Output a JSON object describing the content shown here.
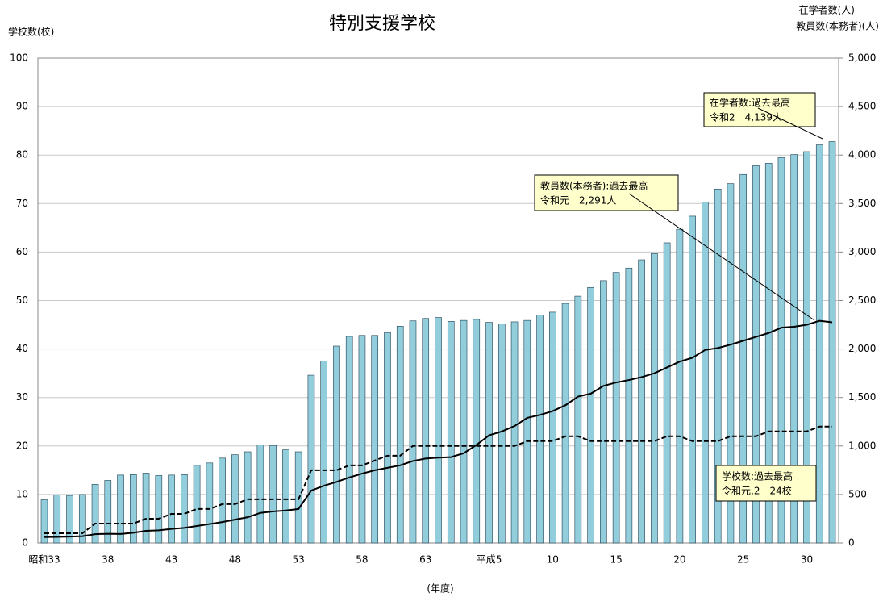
{
  "chart_data": {
    "type": "bar",
    "title": "特別支援学校",
    "y_label": "学校数(校)",
    "y2_label": [
      "在学者数(人)",
      "教員数(本務者)(人)"
    ],
    "x_label": "(年度)",
    "categories": [
      "昭和33",
      null,
      null,
      null,
      null,
      "38",
      null,
      null,
      null,
      null,
      "43",
      null,
      null,
      null,
      null,
      "48",
      null,
      null,
      null,
      null,
      "53",
      null,
      null,
      null,
      null,
      "58",
      null,
      null,
      null,
      null,
      "63",
      null,
      null,
      null,
      null,
      "平成5",
      null,
      null,
      null,
      null,
      "10",
      null,
      null,
      null,
      null,
      "15",
      null,
      null,
      null,
      null,
      "20",
      null,
      null,
      null,
      null,
      "25",
      null,
      null,
      null,
      null,
      "30",
      null,
      null
    ],
    "series": [
      {
        "type": "bar",
        "axis": "y2",
        "color": "#92cddc",
        "values": [
          445,
          495,
          490,
          500,
          605,
          645,
          700,
          705,
          720,
          695,
          700,
          705,
          800,
          825,
          875,
          910,
          940,
          1010,
          1005,
          960,
          940,
          1730,
          1875,
          2030,
          2130,
          2140,
          2140,
          2170,
          2235,
          2290,
          2315,
          2325,
          2285,
          2295,
          2305,
          2275,
          2260,
          2280,
          2295,
          2350,
          2380,
          2470,
          2545,
          2635,
          2705,
          2790,
          2835,
          2920,
          2985,
          3095,
          3235,
          3370,
          3515,
          3650,
          3705,
          3800,
          3890,
          3915,
          3975,
          4005,
          4035,
          4105,
          4139
        ]
      },
      {
        "type": "line",
        "axis": "y2",
        "color": "#000000",
        "dash": false,
        "values": [
          60,
          62,
          65,
          70,
          90,
          95,
          93,
          105,
          125,
          130,
          145,
          155,
          175,
          195,
          215,
          240,
          265,
          310,
          325,
          335,
          350,
          540,
          590,
          630,
          675,
          715,
          750,
          775,
          800,
          845,
          870,
          880,
          885,
          925,
          1010,
          1110,
          1150,
          1205,
          1290,
          1320,
          1360,
          1420,
          1510,
          1540,
          1620,
          1655,
          1680,
          1710,
          1750,
          1810,
          1870,
          1910,
          1990,
          2010,
          2045,
          2085,
          2125,
          2165,
          2220,
          2230,
          2250,
          2291,
          2275
        ]
      },
      {
        "type": "line",
        "axis": "y",
        "color": "#000000",
        "dash": true,
        "values": [
          2,
          2,
          2,
          2,
          4,
          4,
          4,
          4,
          5,
          5,
          6,
          6,
          7,
          7,
          8,
          8,
          9,
          9,
          9,
          9,
          9,
          15,
          15,
          15,
          16,
          16,
          17,
          18,
          18,
          20,
          20,
          20,
          20,
          20,
          20,
          20,
          20,
          20,
          21,
          21,
          21,
          22,
          22,
          21,
          21,
          21,
          21,
          21,
          21,
          22,
          22,
          21,
          21,
          21,
          22,
          22,
          22,
          23,
          23,
          23,
          23,
          24,
          24
        ]
      }
    ],
    "ylim": [
      0,
      100
    ],
    "yticks": [
      0,
      10,
      20,
      30,
      40,
      50,
      60,
      70,
      80,
      90,
      100
    ],
    "y2lim": [
      0,
      5000
    ],
    "y2ticks": [
      0,
      500,
      {
        "value": 1000,
        "label": "1,000"
      },
      {
        "value": 1500,
        "label": "1,500"
      },
      {
        "value": 2000,
        "label": "2,000"
      },
      {
        "value": 2500,
        "label": "2,500"
      },
      {
        "value": 3000,
        "label": "3,000"
      },
      {
        "value": 3500,
        "label": "3,500"
      },
      {
        "value": 4000,
        "label": "4,000"
      },
      {
        "value": 4500,
        "label": "4,500"
      },
      {
        "value": 5000,
        "label": "5,000"
      }
    ],
    "grid": true,
    "annotations": [
      {
        "lines": [
          "在学者数:過去最高",
          "令和2　4,139人"
        ]
      },
      {
        "lines": [
          "教員数(本務者):過去最高",
          "令和元　2,291人"
        ]
      },
      {
        "lines": [
          "学校数:過去最高",
          "令和元,2　24校"
        ]
      }
    ]
  }
}
